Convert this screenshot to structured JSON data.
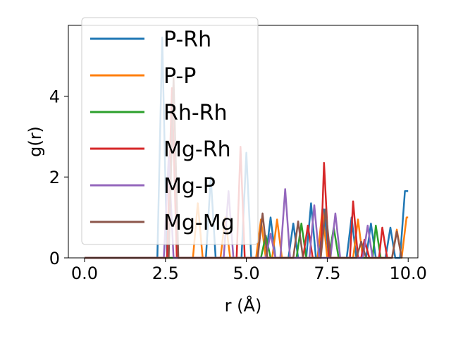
{
  "chart_data": {
    "type": "line",
    "xlabel": "r (Å)",
    "ylabel": "g(r)",
    "xlim": [
      -0.5,
      10.3
    ],
    "ylim": [
      0,
      5.75
    ],
    "xticks": [
      0.0,
      2.5,
      5.0,
      7.5,
      10.0
    ],
    "xtick_labels": [
      "0.0",
      "2.5",
      "5.0",
      "7.5",
      "10.0"
    ],
    "yticks": [
      0,
      2,
      4
    ],
    "ytick_labels": [
      "0",
      "2",
      "4"
    ],
    "grid": false,
    "legend_placement": "upper-left",
    "series": [
      {
        "name": "P-Rh",
        "color": "#1f77b4",
        "points": [
          [
            0,
            0
          ],
          [
            2.25,
            0
          ],
          [
            2.4,
            5.45
          ],
          [
            2.55,
            0
          ],
          [
            3.75,
            0
          ],
          [
            3.9,
            2.0
          ],
          [
            4.05,
            0
          ],
          [
            4.85,
            0
          ],
          [
            5.0,
            2.6
          ],
          [
            5.15,
            0
          ],
          [
            5.6,
            0
          ],
          [
            5.75,
            1.0
          ],
          [
            5.9,
            0
          ],
          [
            6.3,
            0
          ],
          [
            6.45,
            0.85
          ],
          [
            6.6,
            0
          ],
          [
            6.85,
            0
          ],
          [
            7.0,
            1.35
          ],
          [
            7.15,
            0
          ],
          [
            7.25,
            0
          ],
          [
            7.4,
            1.2
          ],
          [
            7.55,
            0
          ],
          [
            8.1,
            0
          ],
          [
            8.25,
            1.0
          ],
          [
            8.4,
            0
          ],
          [
            8.7,
            0
          ],
          [
            8.85,
            0.85
          ],
          [
            9.0,
            0
          ],
          [
            9.3,
            0
          ],
          [
            9.45,
            0.75
          ],
          [
            9.6,
            0
          ],
          [
            9.75,
            0
          ],
          [
            9.9,
            1.65
          ],
          [
            10.0,
            1.65
          ]
        ]
      },
      {
        "name": "P-P",
        "color": "#ff7f0e",
        "points": [
          [
            0,
            0
          ],
          [
            3.35,
            0
          ],
          [
            3.5,
            1.35
          ],
          [
            3.65,
            0
          ],
          [
            4.2,
            0
          ],
          [
            4.35,
            1.0
          ],
          [
            4.5,
            0
          ],
          [
            5.3,
            0
          ],
          [
            5.45,
            0.95
          ],
          [
            5.6,
            0
          ],
          [
            5.8,
            0
          ],
          [
            5.95,
            0.95
          ],
          [
            6.1,
            0
          ],
          [
            7.2,
            0
          ],
          [
            7.35,
            1.2
          ],
          [
            7.5,
            0
          ],
          [
            8.3,
            0
          ],
          [
            8.45,
            0.95
          ],
          [
            8.6,
            0
          ],
          [
            9.5,
            0
          ],
          [
            9.65,
            0.7
          ],
          [
            9.8,
            0
          ],
          [
            9.95,
            1.0
          ],
          [
            10.0,
            1.0
          ]
        ]
      },
      {
        "name": "Rh-Rh",
        "color": "#2ca02c",
        "points": [
          [
            0,
            0
          ],
          [
            5.45,
            0
          ],
          [
            5.6,
            0.55
          ],
          [
            5.75,
            0
          ],
          [
            6.55,
            0
          ],
          [
            6.7,
            0.85
          ],
          [
            6.85,
            0
          ],
          [
            7.55,
            0
          ],
          [
            7.7,
            0.75
          ],
          [
            7.85,
            0
          ],
          [
            8.9,
            0
          ],
          [
            9.0,
            0.8
          ],
          [
            9.15,
            0
          ]
        ]
      },
      {
        "name": "Mg-Rh",
        "color": "#d62728",
        "points": [
          [
            0,
            0
          ],
          [
            2.55,
            0
          ],
          [
            2.7,
            4.2
          ],
          [
            2.85,
            0
          ],
          [
            4.7,
            0
          ],
          [
            4.82,
            2.75
          ],
          [
            4.95,
            0
          ],
          [
            6.75,
            0
          ],
          [
            6.9,
            0.8
          ],
          [
            7.05,
            0
          ],
          [
            7.3,
            0
          ],
          [
            7.4,
            2.35
          ],
          [
            7.55,
            0
          ],
          [
            8.2,
            0
          ],
          [
            8.3,
            1.4
          ],
          [
            8.45,
            0
          ],
          [
            8.55,
            0
          ],
          [
            8.65,
            0.45
          ],
          [
            8.8,
            0
          ],
          [
            9.1,
            0
          ],
          [
            9.2,
            0.75
          ],
          [
            9.35,
            0
          ]
        ]
      },
      {
        "name": "Mg-P",
        "color": "#9467bd",
        "points": [
          [
            0,
            0
          ],
          [
            2.45,
            0
          ],
          [
            2.6,
            2.5
          ],
          [
            2.75,
            0
          ],
          [
            4.3,
            0
          ],
          [
            4.45,
            1.65
          ],
          [
            4.6,
            0
          ],
          [
            5.6,
            0
          ],
          [
            5.75,
            0.6
          ],
          [
            5.9,
            0
          ],
          [
            6.05,
            0
          ],
          [
            6.2,
            1.7
          ],
          [
            6.35,
            0
          ],
          [
            6.95,
            0
          ],
          [
            7.1,
            1.3
          ],
          [
            7.25,
            0
          ],
          [
            7.6,
            0
          ],
          [
            7.75,
            1.1
          ],
          [
            7.9,
            0
          ],
          [
            8.6,
            0
          ],
          [
            8.75,
            0.8
          ],
          [
            8.9,
            0
          ]
        ]
      },
      {
        "name": "Mg-Mg",
        "color": "#8c564b",
        "points": [
          [
            0,
            0
          ],
          [
            2.6,
            0
          ],
          [
            2.75,
            4.45
          ],
          [
            2.9,
            0
          ],
          [
            5.35,
            0
          ],
          [
            5.5,
            1.1
          ],
          [
            5.65,
            0
          ],
          [
            6.45,
            0
          ],
          [
            6.6,
            0.9
          ],
          [
            6.75,
            0
          ],
          [
            7.3,
            0
          ],
          [
            7.45,
            1.2
          ],
          [
            7.6,
            0
          ],
          [
            8.4,
            0
          ],
          [
            8.55,
            0.4
          ],
          [
            8.7,
            0
          ],
          [
            9.5,
            0
          ],
          [
            9.65,
            0.65
          ],
          [
            9.8,
            0
          ]
        ]
      }
    ]
  }
}
